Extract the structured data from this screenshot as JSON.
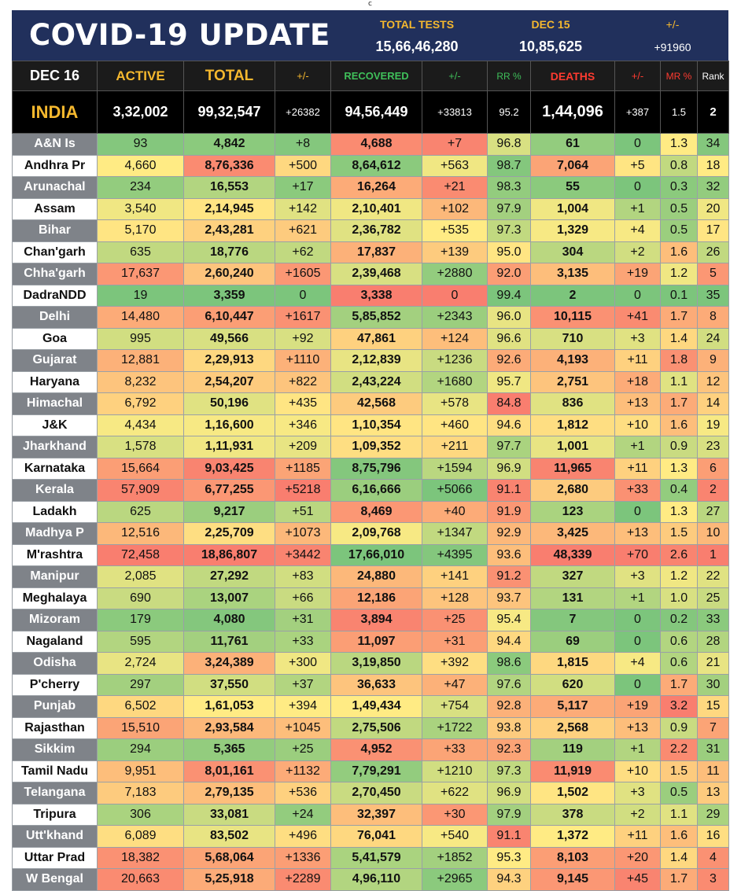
{
  "top_mark": "c",
  "banner": {
    "title": "COVID-19 UPDATE",
    "total_tests_label": "TOTAL TESTS",
    "total_tests_value": "15,66,46,280",
    "dec15_label": "DEC 15",
    "dec15_value": "10,85,625",
    "change_label": "+/-",
    "change_value": "+91960"
  },
  "header": {
    "date": "DEC 16",
    "active": "ACTIVE",
    "total": "TOTAL",
    "total_change": "+/-",
    "recovered": "RECOVERED",
    "recovered_change": "+/-",
    "rr": "RR %",
    "deaths": "DEATHS",
    "deaths_change": "+/-",
    "mr": "MR %",
    "rank": "Rank"
  },
  "colors": {
    "banner_bg": "#21305c",
    "header_gold": "#f5b82e",
    "header_green": "#3fbf5a",
    "header_red": "#ff3b30",
    "state_gray": "#7f8389"
  },
  "india": {
    "name": "INDIA",
    "active": "3,32,002",
    "total": "99,32,547",
    "total_change": "+26382",
    "recovered": "94,56,449",
    "recovered_change": "+33813",
    "rr": "95.2",
    "deaths": "1,44,096",
    "deaths_change": "+387",
    "mr": "1.5",
    "rank": "2"
  },
  "rows": [
    [
      "A&N Is",
      "93",
      "4,842",
      "+8",
      "4,688",
      "+7",
      "96.8",
      "61",
      "0",
      "1.3",
      "34"
    ],
    [
      "Andhra Pr",
      "4,660",
      "8,76,336",
      "+500",
      "8,64,612",
      "+563",
      "98.7",
      "7,064",
      "+5",
      "0.8",
      "18"
    ],
    [
      "Arunachal",
      "234",
      "16,553",
      "+17",
      "16,264",
      "+21",
      "98.3",
      "55",
      "0",
      "0.3",
      "32"
    ],
    [
      "Assam",
      "3,540",
      "2,14,945",
      "+142",
      "2,10,401",
      "+102",
      "97.9",
      "1,004",
      "+1",
      "0.5",
      "20"
    ],
    [
      "Bihar",
      "5,170",
      "2,43,281",
      "+621",
      "2,36,782",
      "+535",
      "97.3",
      "1,329",
      "+4",
      "0.5",
      "17"
    ],
    [
      "Chan'garh",
      "635",
      "18,776",
      "+62",
      "17,837",
      "+139",
      "95.0",
      "304",
      "+2",
      "1.6",
      "26"
    ],
    [
      "Chha'garh",
      "17,637",
      "2,60,240",
      "+1605",
      "2,39,468",
      "+2880",
      "92.0",
      "3,135",
      "+19",
      "1.2",
      "5"
    ],
    [
      "DadraNDD",
      "19",
      "3,359",
      "0",
      "3,338",
      "0",
      "99.4",
      "2",
      "0",
      "0.1",
      "35"
    ],
    [
      "Delhi",
      "14,480",
      "6,10,447",
      "+1617",
      "5,85,852",
      "+2343",
      "96.0",
      "10,115",
      "+41",
      "1.7",
      "8"
    ],
    [
      "Goa",
      "995",
      "49,566",
      "+92",
      "47,861",
      "+124",
      "96.6",
      "710",
      "+3",
      "1.4",
      "24"
    ],
    [
      "Gujarat",
      "12,881",
      "2,29,913",
      "+1110",
      "2,12,839",
      "+1236",
      "92.6",
      "4,193",
      "+11",
      "1.8",
      "9"
    ],
    [
      "Haryana",
      "8,232",
      "2,54,207",
      "+822",
      "2,43,224",
      "+1680",
      "95.7",
      "2,751",
      "+18",
      "1.1",
      "12"
    ],
    [
      "Himachal",
      "6,792",
      "50,196",
      "+435",
      "42,568",
      "+578",
      "84.8",
      "836",
      "+13",
      "1.7",
      "14"
    ],
    [
      "J&K",
      "4,434",
      "1,16,600",
      "+346",
      "1,10,354",
      "+460",
      "94.6",
      "1,812",
      "+10",
      "1.6",
      "19"
    ],
    [
      "Jharkhand",
      "1,578",
      "1,11,931",
      "+209",
      "1,09,352",
      "+211",
      "97.7",
      "1,001",
      "+1",
      "0.9",
      "23"
    ],
    [
      "Karnataka",
      "15,664",
      "9,03,425",
      "+1185",
      "8,75,796",
      "+1594",
      "96.9",
      "11,965",
      "+11",
      "1.3",
      "6"
    ],
    [
      "Kerala",
      "57,909",
      "6,77,255",
      "+5218",
      "6,16,666",
      "+5066",
      "91.1",
      "2,680",
      "+33",
      "0.4",
      "2"
    ],
    [
      "Ladakh",
      "625",
      "9,217",
      "+51",
      "8,469",
      "+40",
      "91.9",
      "123",
      "0",
      "1.3",
      "27"
    ],
    [
      "Madhya P",
      "12,516",
      "2,25,709",
      "+1073",
      "2,09,768",
      "+1347",
      "92.9",
      "3,425",
      "+13",
      "1.5",
      "10"
    ],
    [
      "M'rashtra",
      "72,458",
      "18,86,807",
      "+3442",
      "17,66,010",
      "+4395",
      "93.6",
      "48,339",
      "+70",
      "2.6",
      "1"
    ],
    [
      "Manipur",
      "2,085",
      "27,292",
      "+83",
      "24,880",
      "+141",
      "91.2",
      "327",
      "+3",
      "1.2",
      "22"
    ],
    [
      "Meghalaya",
      "690",
      "13,007",
      "+66",
      "12,186",
      "+128",
      "93.7",
      "131",
      "+1",
      "1.0",
      "25"
    ],
    [
      "Mizoram",
      "179",
      "4,080",
      "+31",
      "3,894",
      "+25",
      "95.4",
      "7",
      "0",
      "0.2",
      "33"
    ],
    [
      "Nagaland",
      "595",
      "11,761",
      "+33",
      "11,097",
      "+31",
      "94.4",
      "69",
      "0",
      "0.6",
      "28"
    ],
    [
      "Odisha",
      "2,724",
      "3,24,389",
      "+300",
      "3,19,850",
      "+392",
      "98.6",
      "1,815",
      "+4",
      "0.6",
      "21"
    ],
    [
      "P'cherry",
      "297",
      "37,550",
      "+37",
      "36,633",
      "+47",
      "97.6",
      "620",
      "0",
      "1.7",
      "30"
    ],
    [
      "Punjab",
      "6,502",
      "1,61,053",
      "+394",
      "1,49,434",
      "+754",
      "92.8",
      "5,117",
      "+19",
      "3.2",
      "15"
    ],
    [
      "Rajasthan",
      "15,510",
      "2,93,584",
      "+1045",
      "2,75,506",
      "+1722",
      "93.8",
      "2,568",
      "+13",
      "0.9",
      "7"
    ],
    [
      "Sikkim",
      "294",
      "5,365",
      "+25",
      "4,952",
      "+33",
      "92.3",
      "119",
      "+1",
      "2.2",
      "31"
    ],
    [
      "Tamil Nadu",
      "9,951",
      "8,01,161",
      "+1132",
      "7,79,291",
      "+1210",
      "97.3",
      "11,919",
      "+10",
      "1.5",
      "11"
    ],
    [
      "Telangana",
      "7,183",
      "2,79,135",
      "+536",
      "2,70,450",
      "+622",
      "96.9",
      "1,502",
      "+3",
      "0.5",
      "13"
    ],
    [
      "Tripura",
      "306",
      "33,081",
      "+24",
      "32,397",
      "+30",
      "97.9",
      "378",
      "+2",
      "1.1",
      "29"
    ],
    [
      "Utt'khand",
      "6,089",
      "83,502",
      "+496",
      "76,041",
      "+540",
      "91.1",
      "1,372",
      "+11",
      "1.6",
      "16"
    ],
    [
      "Uttar Prad",
      "18,382",
      "5,68,064",
      "+1336",
      "5,41,579",
      "+1852",
      "95.3",
      "8,103",
      "+20",
      "1.4",
      "4"
    ],
    [
      "W Bengal",
      "20,663",
      "5,25,918",
      "+2289",
      "4,96,110",
      "+2965",
      "94.3",
      "9,145",
      "+45",
      "1.7",
      "3"
    ]
  ]
}
